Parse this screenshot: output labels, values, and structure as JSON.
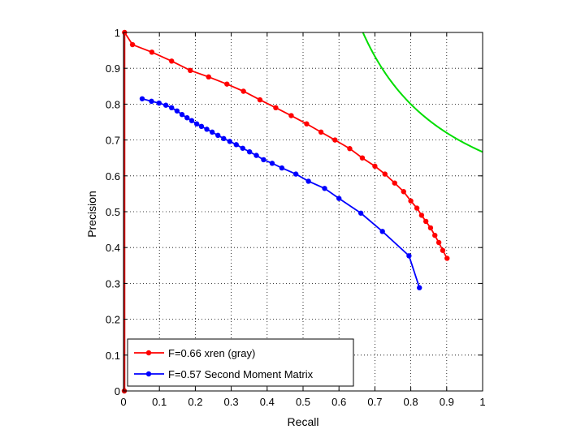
{
  "chart_data": {
    "type": "line",
    "title": "",
    "xlabel": "Recall",
    "ylabel": "Precision",
    "xlim": [
      0,
      1
    ],
    "ylim": [
      0,
      1
    ],
    "xticks": [
      "0",
      "0.1",
      "0.2",
      "0.3",
      "0.4",
      "0.5",
      "0.6",
      "0.7",
      "0.8",
      "0.9",
      "1"
    ],
    "yticks": [
      "0",
      "0.1",
      "0.2",
      "0.3",
      "0.4",
      "0.5",
      "0.6",
      "0.7",
      "0.8",
      "0.9",
      "1"
    ],
    "grid": true,
    "grid_style": "dotted",
    "legend_position": "bottom-left",
    "series": [
      {
        "name": "F=0.66 xren (gray)",
        "color": "#ff0000",
        "marker": "dot",
        "x": [
          0.003,
          0.025,
          0.079,
          0.134,
          0.186,
          0.237,
          0.288,
          0.334,
          0.38,
          0.424,
          0.467,
          0.51,
          0.55,
          0.589,
          0.63,
          0.665,
          0.7,
          0.728,
          0.755,
          0.78,
          0.8,
          0.817,
          0.83,
          0.842,
          0.855,
          0.867,
          0.878,
          0.889,
          0.901
        ],
        "y": [
          1.0,
          0.966,
          0.945,
          0.92,
          0.894,
          0.876,
          0.856,
          0.836,
          0.812,
          0.79,
          0.768,
          0.745,
          0.722,
          0.7,
          0.676,
          0.65,
          0.627,
          0.605,
          0.58,
          0.556,
          0.53,
          0.51,
          0.49,
          0.473,
          0.455,
          0.434,
          0.414,
          0.392,
          0.37
        ]
      },
      {
        "name": "F=0.57 Second Moment Matrix",
        "color": "#0000ff",
        "marker": "dot",
        "x": [
          0.052,
          0.078,
          0.099,
          0.118,
          0.134,
          0.149,
          0.163,
          0.177,
          0.19,
          0.204,
          0.217,
          0.232,
          0.247,
          0.263,
          0.279,
          0.296,
          0.314,
          0.332,
          0.351,
          0.37,
          0.39,
          0.414,
          0.441,
          0.48,
          0.515,
          0.56,
          0.6,
          0.661,
          0.721,
          0.795,
          0.824
        ],
        "y": [
          0.815,
          0.808,
          0.803,
          0.797,
          0.79,
          0.781,
          0.771,
          0.762,
          0.754,
          0.745,
          0.738,
          0.73,
          0.722,
          0.713,
          0.704,
          0.696,
          0.687,
          0.677,
          0.667,
          0.657,
          0.645,
          0.635,
          0.622,
          0.605,
          0.585,
          0.565,
          0.537,
          0.496,
          0.445,
          0.377,
          0.288
        ]
      }
    ],
    "extra_lines": [
      {
        "label": "F contour",
        "color": "#00dd00",
        "f_value": 0.8
      },
      {
        "label": "vertical boundary",
        "color": "#cc0000",
        "x": 0.0
      }
    ]
  }
}
